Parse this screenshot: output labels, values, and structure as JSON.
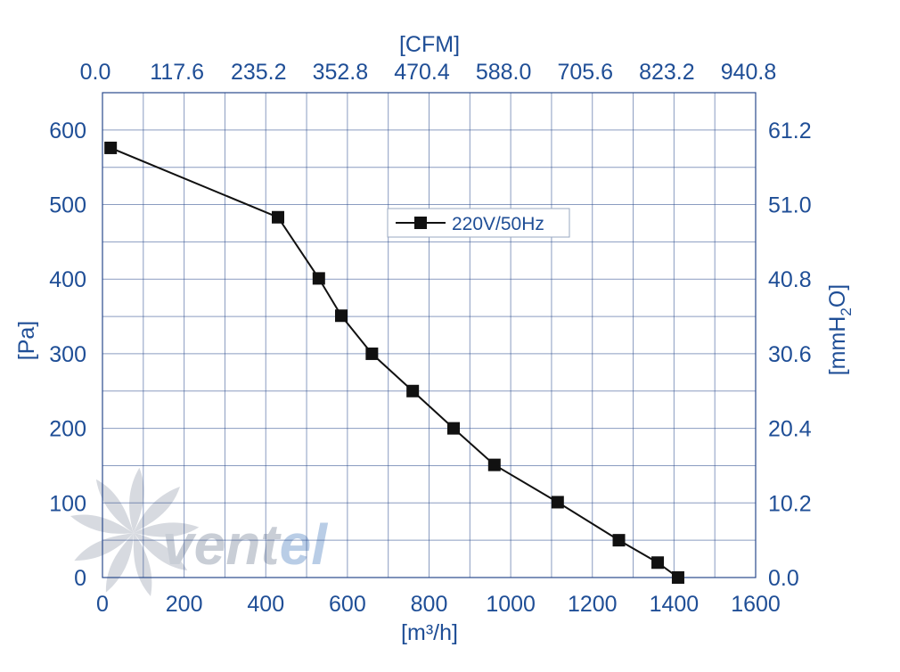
{
  "colors": {
    "axis_text": "#1f4e96",
    "grid": "#2a4a8c",
    "series": "#111111",
    "watermark": "#c9ced6",
    "watermark_accent": "#b9cde6"
  },
  "watermark": {
    "logo": "ventel",
    "text_part1": "vent",
    "text_part2": "el"
  },
  "chart_data": {
    "type": "line",
    "title": "",
    "xlabel": "[m³/h]",
    "x2label": "[CFM]",
    "ylabel": "[Pa]",
    "y2label_parts": [
      "[mmH",
      "2",
      "O]"
    ],
    "xlim": [
      0,
      1600
    ],
    "ylim": [
      0,
      650
    ],
    "x_ticks": [
      0,
      200,
      400,
      600,
      800,
      1000,
      1200,
      1400,
      1600
    ],
    "x_tick_labels": [
      "0",
      "200",
      "400",
      "600",
      "800",
      "1000",
      "1200",
      "1400",
      "1600"
    ],
    "x2_tick_labels": [
      "0.0",
      "117.6",
      "235.2",
      "352.8",
      "470.4",
      "588.0",
      "705.6",
      "823.2",
      "940.8"
    ],
    "y_ticks": [
      0,
      100,
      200,
      300,
      400,
      500,
      600
    ],
    "y_tick_labels": [
      "0",
      "100",
      "200",
      "300",
      "400",
      "500",
      "600"
    ],
    "y2_tick_labels": [
      "0.0",
      "10.2",
      "20.4",
      "30.6",
      "40.8",
      "51.0",
      "61.2"
    ],
    "grid": true,
    "legend": {
      "position": "top-center"
    },
    "series": [
      {
        "name": "220V/50Hz",
        "marker": "square",
        "points": [
          [
            20,
            576
          ],
          [
            430,
            483
          ],
          [
            530,
            401
          ],
          [
            585,
            351
          ],
          [
            660,
            300
          ],
          [
            760,
            250
          ],
          [
            860,
            200
          ],
          [
            960,
            151
          ],
          [
            1115,
            101
          ],
          [
            1265,
            50
          ],
          [
            1360,
            20
          ],
          [
            1410,
            0
          ]
        ]
      }
    ]
  }
}
